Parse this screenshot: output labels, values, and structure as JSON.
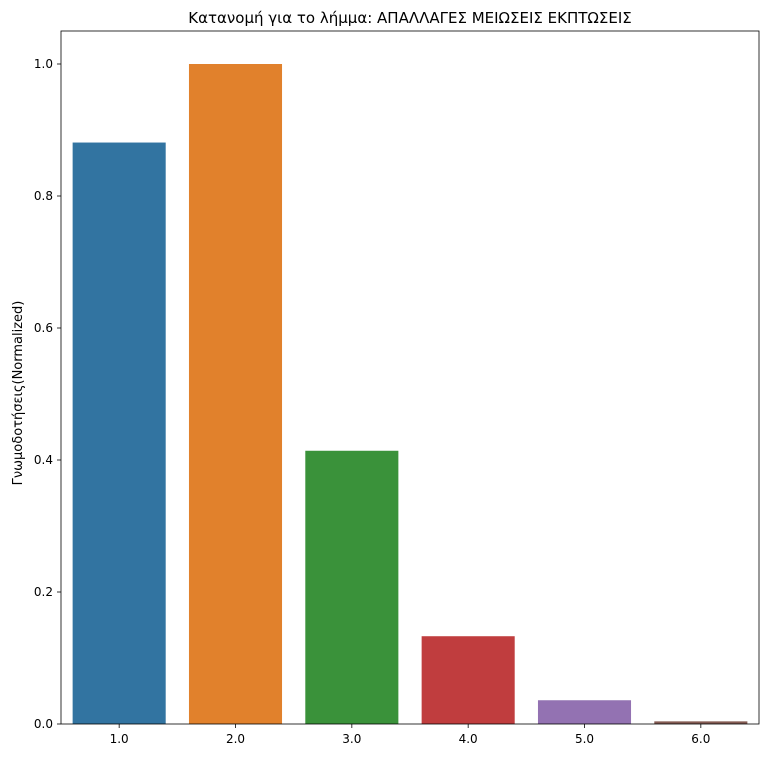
{
  "chart_data": {
    "type": "bar",
    "title": "Κατανομή για το λήμμα: ΑΠΑΛΛΑΓΕΣ ΜΕΙΩΣΕΙΣ ΕΚΠΤΩΣΕΙΣ",
    "xlabel": "",
    "ylabel": "Γνωμοδοτήσεις(Normalized)",
    "categories": [
      "1.0",
      "2.0",
      "3.0",
      "4.0",
      "5.0",
      "6.0"
    ],
    "values": [
      0.881,
      1.0,
      0.414,
      0.133,
      0.036,
      0.004
    ],
    "colors": [
      "#3274a1",
      "#e1812c",
      "#3a923a",
      "#c03d3e",
      "#9372b2",
      "#845b53"
    ],
    "ylim": [
      0,
      1.05
    ],
    "yticks": [
      0.0,
      0.2,
      0.4,
      0.6,
      0.8,
      1.0
    ],
    "ytick_labels": [
      "0.0",
      "0.2",
      "0.4",
      "0.6",
      "0.8",
      "1.0"
    ],
    "grid": false,
    "legend": "none"
  }
}
